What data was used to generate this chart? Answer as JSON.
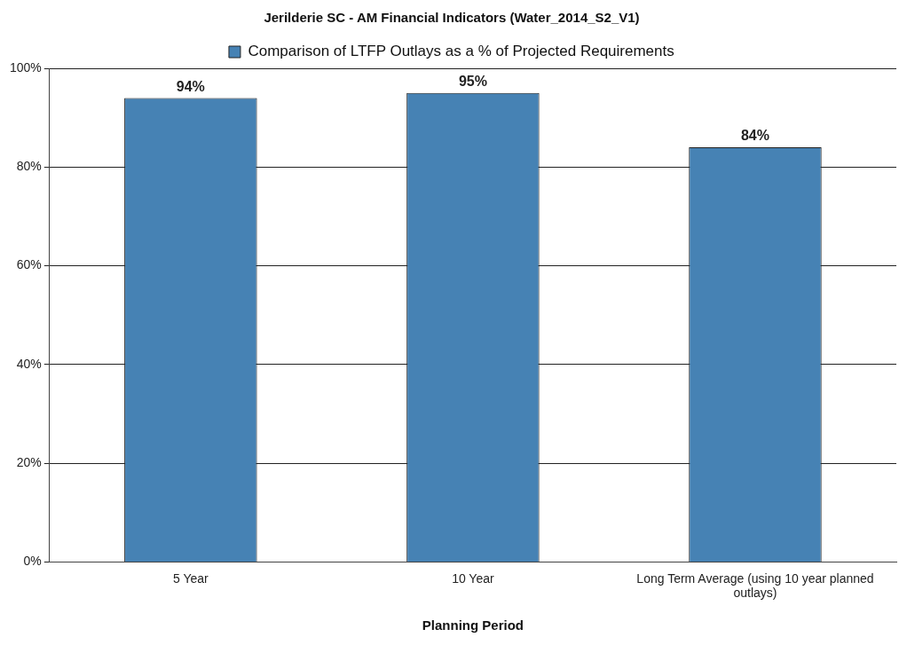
{
  "chart_data": {
    "type": "bar",
    "title": "Jerilderie SC - AM Financial Indicators (Water_2014_S2_V1)",
    "xlabel": "Planning Period",
    "categories": [
      "5 Year",
      "10 Year",
      "Long Term Average (using 10 year planned outlays)"
    ],
    "series": [
      {
        "name": "Comparison of LTFP Outlays as a % of Projected Requirements",
        "color": "#4682b4",
        "values": [
          94,
          95,
          84
        ],
        "value_labels": [
          "94%",
          "95%",
          "84%"
        ]
      }
    ],
    "ylim": [
      0,
      100
    ],
    "yticks": [
      {
        "value": 0,
        "label": "0%"
      },
      {
        "value": 20,
        "label": "20%"
      },
      {
        "value": 40,
        "label": "40%"
      },
      {
        "value": 60,
        "label": "60%"
      },
      {
        "value": 80,
        "label": "80%"
      },
      {
        "value": 100,
        "label": "100%"
      }
    ],
    "grid": "y",
    "legend": "top"
  }
}
